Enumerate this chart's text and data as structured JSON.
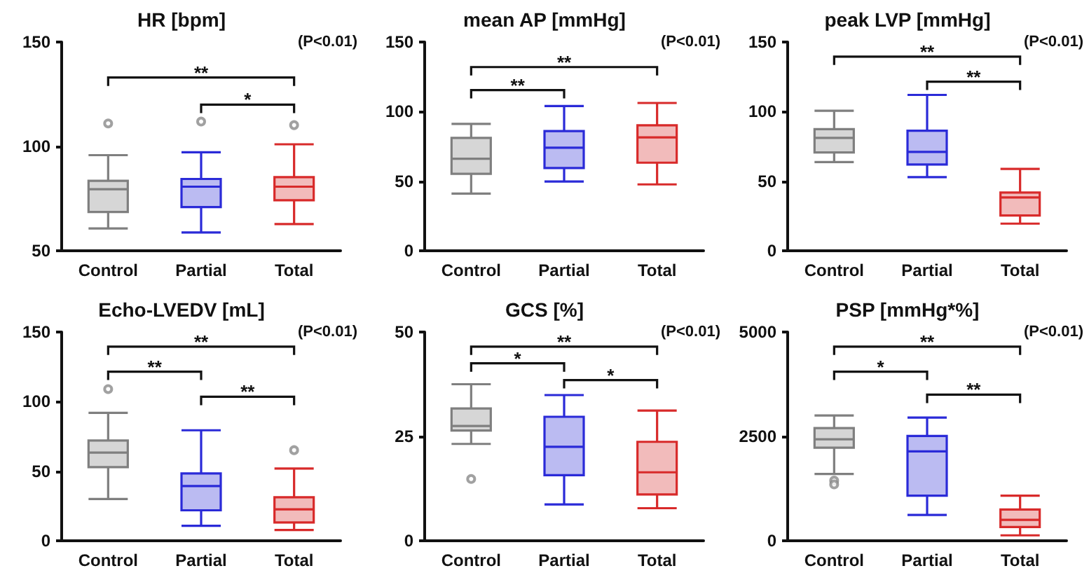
{
  "chart_data": [
    {
      "type": "box",
      "title": "HR [bpm]",
      "categories": [
        "Control",
        "Partial",
        "Total"
      ],
      "colors": [
        "#7f7f7f",
        "#2a2ad8",
        "#d82a2a"
      ],
      "ylim": [
        50,
        150
      ],
      "yticks": [
        50,
        100,
        150
      ],
      "grid": false,
      "annotations": [
        "**",
        "*",
        "(P<0.01)"
      ],
      "boxes": [
        {
          "low": 60.7,
          "q1": 68.6,
          "median": 79.5,
          "q3": 83.5,
          "high": 95.8,
          "outliers": [
            111
          ]
        },
        {
          "low": 58.8,
          "q1": 70.9,
          "median": 80.7,
          "q3": 84.4,
          "high": 97.2,
          "outliers": [
            111.9
          ]
        },
        {
          "low": 62.8,
          "q1": 74.2,
          "median": 80.7,
          "q3": 85.3,
          "high": 101,
          "outliers": [
            110.2
          ]
        }
      ]
    },
    {
      "type": "box",
      "title": "mean AP [mmHg]",
      "categories": [
        "Control",
        "Partial",
        "Total"
      ],
      "colors": [
        "#7f7f7f",
        "#2a2ad8",
        "#d82a2a"
      ],
      "ylim": [
        0,
        150
      ],
      "yticks": [
        0,
        50,
        100,
        150
      ],
      "grid": false,
      "annotations": [
        "**",
        "**",
        "(P<0.01)"
      ],
      "boxes": [
        {
          "low": 41.1,
          "q1": 55.3,
          "median": 66.1,
          "q3": 81.1,
          "high": 91.2
        },
        {
          "low": 49.8,
          "q1": 59.5,
          "median": 74.1,
          "q3": 86,
          "high": 104
        },
        {
          "low": 47.7,
          "q1": 63.3,
          "median": 81.5,
          "q3": 90.2,
          "high": 106.2
        }
      ]
    },
    {
      "type": "box",
      "title": "peak LVP [mmHg]",
      "categories": [
        "Control",
        "Partial",
        "Total"
      ],
      "colors": [
        "#7f7f7f",
        "#2a2ad8",
        "#d82a2a"
      ],
      "ylim": [
        0,
        150
      ],
      "yticks": [
        0,
        50,
        100,
        150
      ],
      "grid": false,
      "annotations": [
        "**",
        "**",
        "(P<0.01)"
      ],
      "boxes": [
        {
          "low": 63.7,
          "q1": 70.7,
          "median": 81.1,
          "q3": 87.4,
          "high": 100.6
        },
        {
          "low": 52.9,
          "q1": 62,
          "median": 71,
          "q3": 86.3,
          "high": 112
        },
        {
          "low": 19.5,
          "q1": 25.4,
          "median": 38.3,
          "q3": 41.8,
          "high": 58.8
        }
      ]
    },
    {
      "type": "box",
      "title": "Echo-LVEDV [mL]",
      "categories": [
        "Control",
        "Partial",
        "Total"
      ],
      "colors": [
        "#7f7f7f",
        "#2a2ad8",
        "#d82a2a"
      ],
      "ylim": [
        0,
        150
      ],
      "yticks": [
        0,
        50,
        100,
        150
      ],
      "grid": false,
      "annotations": [
        "**",
        "**",
        "**",
        "(P<0.01)"
      ],
      "boxes": [
        {
          "low": 30,
          "q1": 52.9,
          "median": 63.4,
          "q3": 72,
          "high": 91.9,
          "outliers": [
            109
          ]
        },
        {
          "low": 10.8,
          "q1": 21.9,
          "median": 39.3,
          "q3": 48.4,
          "high": 79.4
        },
        {
          "low": 7.7,
          "q1": 13.2,
          "median": 22.6,
          "q3": 31.3,
          "high": 51.9,
          "outliers": [
            65.1
          ]
        }
      ]
    },
    {
      "type": "box",
      "title": "GCS [%]",
      "categories": [
        "Control",
        "Partial",
        "Total"
      ],
      "colors": [
        "#7f7f7f",
        "#2a2ad8",
        "#d82a2a"
      ],
      "ylim": [
        0,
        50
      ],
      "yticks": [
        0,
        25,
        50
      ],
      "grid": false,
      "annotations": [
        "**",
        "*",
        "*",
        "(P<0.01)"
      ],
      "boxes": [
        {
          "low": 23.2,
          "q1": 26.4,
          "median": 27.5,
          "q3": 31.7,
          "high": 37.5,
          "outliers": [
            14.8
          ]
        },
        {
          "low": 8.7,
          "q1": 15.7,
          "median": 22.5,
          "q3": 29.7,
          "high": 34.9
        },
        {
          "low": 7.8,
          "q1": 11.1,
          "median": 16.4,
          "q3": 23.7,
          "high": 31.2
        }
      ]
    },
    {
      "type": "box",
      "title": "PSP [mmHg*%]",
      "categories": [
        "Control",
        "Partial",
        "Total"
      ],
      "colors": [
        "#7f7f7f",
        "#2a2ad8",
        "#d82a2a"
      ],
      "ylim": [
        0,
        5000
      ],
      "yticks": [
        0,
        2500,
        5000
      ],
      "grid": false,
      "annotations": [
        "**",
        "*",
        "**",
        "(P<0.01)"
      ],
      "boxes": [
        {
          "low": 1600,
          "q1": 2230,
          "median": 2430,
          "q3": 2700,
          "high": 3000,
          "outliers": [
            1440,
            1350
          ]
        },
        {
          "low": 620,
          "q1": 1080,
          "median": 2140,
          "q3": 2510,
          "high": 2950
        },
        {
          "low": 130,
          "q1": 330,
          "median": 500,
          "q3": 750,
          "high": 1080
        }
      ]
    }
  ]
}
